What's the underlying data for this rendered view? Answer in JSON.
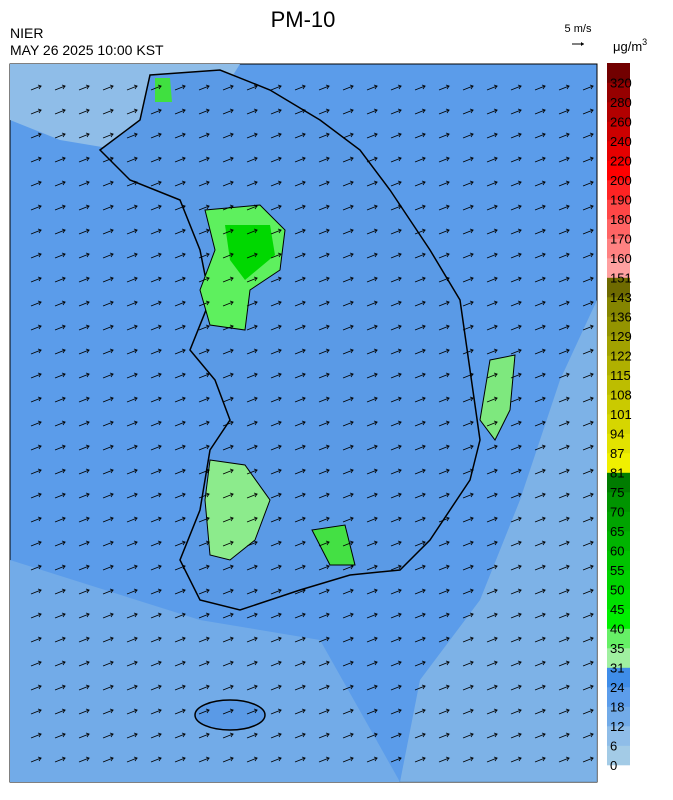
{
  "header": {
    "title": "PM-10",
    "agency": "NIER",
    "datetime": "MAY 26 2025 10:00 KST",
    "wind_scale": "5 m/s"
  },
  "legend": {
    "unit": {
      "base": "μg/m",
      "sup": "3"
    },
    "labels": [
      0,
      6,
      12,
      18,
      24,
      31,
      35,
      40,
      45,
      50,
      55,
      60,
      65,
      70,
      75,
      81,
      87,
      94,
      101,
      108,
      115,
      122,
      129,
      136,
      143,
      151,
      160,
      170,
      180,
      190,
      200,
      220,
      240,
      260,
      280,
      320
    ],
    "colors": [
      "#a3cbe6",
      "#8fbde8",
      "#72abe8",
      "#5c9deb",
      "#3f8de9",
      "#a0f0a0",
      "#66f066",
      "#00f000",
      "#00e000",
      "#00d200",
      "#00c200",
      "#00b400",
      "#00a400",
      "#009400",
      "#007c00",
      "#f0f000",
      "#e2e200",
      "#d6d600",
      "#caca00",
      "#bdbd00",
      "#b0b000",
      "#a2a200",
      "#949400",
      "#858500",
      "#6e6a00",
      "#ffa0a0",
      "#ff8282",
      "#ff6464",
      "#ff4646",
      "#ff2323",
      "#ff0000",
      "#e60000",
      "#cc0000",
      "#b20000",
      "#960000",
      "#720000"
    ]
  }
}
